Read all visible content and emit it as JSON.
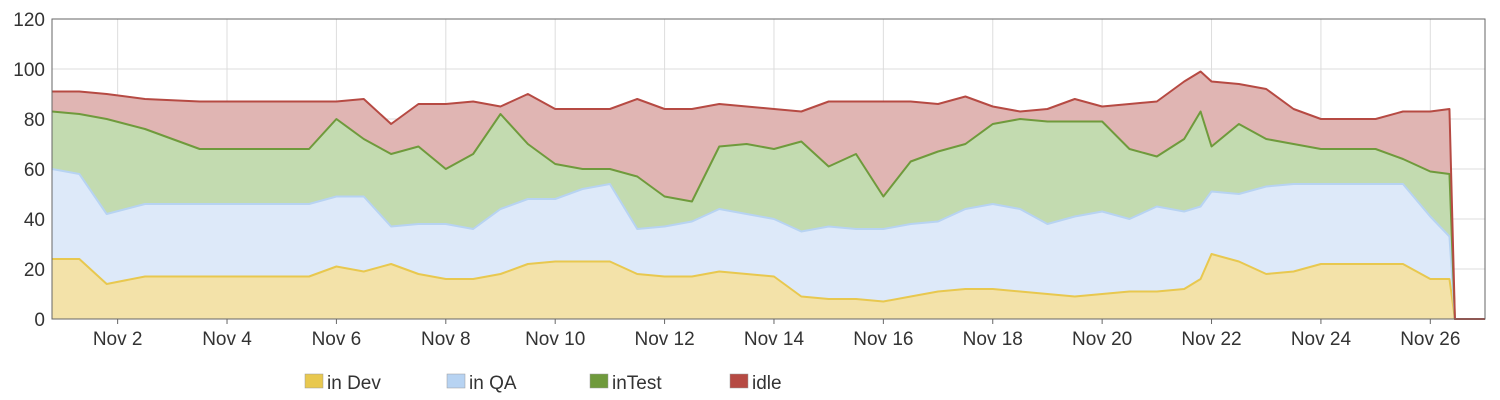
{
  "chart_data": {
    "type": "area",
    "stacked": true,
    "title": "",
    "xlabel": "",
    "ylabel": "",
    "x_start": "Nov 1",
    "x_end": "Nov 27",
    "x_ticks": [
      {
        "x": 2,
        "label": "Nov 2"
      },
      {
        "x": 4,
        "label": "Nov 4"
      },
      {
        "x": 6,
        "label": "Nov 6"
      },
      {
        "x": 8,
        "label": "Nov 8"
      },
      {
        "x": 10,
        "label": "Nov 10"
      },
      {
        "x": 12,
        "label": "Nov 12"
      },
      {
        "x": 14,
        "label": "Nov 14"
      },
      {
        "x": 16,
        "label": "Nov 16"
      },
      {
        "x": 18,
        "label": "Nov 18"
      },
      {
        "x": 20,
        "label": "Nov 20"
      },
      {
        "x": 22,
        "label": "Nov 22"
      },
      {
        "x": 24,
        "label": "Nov 24"
      },
      {
        "x": 26,
        "label": "Nov 26"
      }
    ],
    "y_ticks": [
      0,
      20,
      40,
      60,
      80,
      100,
      120
    ],
    "ylim": [
      0,
      120
    ],
    "grid": true,
    "legend_position": "bottom",
    "x_unit": "day of November",
    "x": [
      0.8,
      1.3,
      1.8,
      2.5,
      3.5,
      4.5,
      5.5,
      6.0,
      6.5,
      7.0,
      7.5,
      8.0,
      8.5,
      9.0,
      9.5,
      10.0,
      10.5,
      11.0,
      11.5,
      12.0,
      12.5,
      13.0,
      13.5,
      14.0,
      14.5,
      15.0,
      15.5,
      16.0,
      16.5,
      17.0,
      17.5,
      18.0,
      18.5,
      19.0,
      19.5,
      20.0,
      20.5,
      21.0,
      21.5,
      21.8,
      22.0,
      22.5,
      23.0,
      23.5,
      24.0,
      24.5,
      25.0,
      25.5,
      26.0,
      26.35,
      26.45,
      27.0
    ],
    "series": [
      {
        "name": "in Dev",
        "color": "#e8c84f",
        "fill": "#f3e2a9",
        "values": [
          24,
          24,
          14,
          17,
          17,
          17,
          17,
          21,
          19,
          22,
          18,
          16,
          16,
          18,
          22,
          23,
          23,
          23,
          18,
          17,
          17,
          19,
          18,
          17,
          9,
          8,
          8,
          7,
          9,
          11,
          12,
          12,
          11,
          10,
          9,
          10,
          11,
          11,
          12,
          16,
          26,
          23,
          18,
          19,
          22,
          22,
          22,
          22,
          16,
          16,
          0,
          0
        ]
      },
      {
        "name": "in QA",
        "color": "#b7d3f2",
        "fill": "#dde9f9",
        "values": [
          36,
          34,
          28,
          29,
          29,
          29,
          29,
          28,
          30,
          15,
          20,
          22,
          20,
          26,
          26,
          25,
          29,
          31,
          18,
          20,
          22,
          25,
          24,
          23,
          26,
          29,
          28,
          29,
          29,
          28,
          32,
          34,
          33,
          28,
          32,
          33,
          29,
          34,
          31,
          29,
          25,
          27,
          35,
          35,
          32,
          32,
          32,
          32,
          25,
          17,
          0,
          0
        ]
      },
      {
        "name": "inTest",
        "color": "#6f9a3c",
        "fill": "#c3dbb0",
        "values": [
          23,
          24,
          38,
          30,
          22,
          22,
          22,
          31,
          23,
          29,
          31,
          22,
          30,
          38,
          22,
          14,
          8,
          6,
          21,
          12,
          8,
          25,
          28,
          28,
          36,
          24,
          30,
          13,
          25,
          28,
          26,
          32,
          36,
          41,
          38,
          36,
          28,
          20,
          29,
          38,
          18,
          28,
          19,
          16,
          14,
          14,
          14,
          10,
          18,
          25,
          0,
          0
        ]
      },
      {
        "name": "idle",
        "color": "#b64a43",
        "fill": "#e0b5b3",
        "values": [
          8,
          9,
          10,
          12,
          19,
          19,
          19,
          7,
          16,
          12,
          17,
          26,
          21,
          3,
          20,
          22,
          24,
          24,
          31,
          35,
          37,
          17,
          15,
          16,
          12,
          26,
          21,
          38,
          24,
          19,
          19,
          7,
          3,
          5,
          9,
          6,
          18,
          22,
          23,
          16,
          26,
          16,
          20,
          14,
          12,
          12,
          12,
          19,
          24,
          26,
          0,
          0
        ]
      }
    ]
  }
}
